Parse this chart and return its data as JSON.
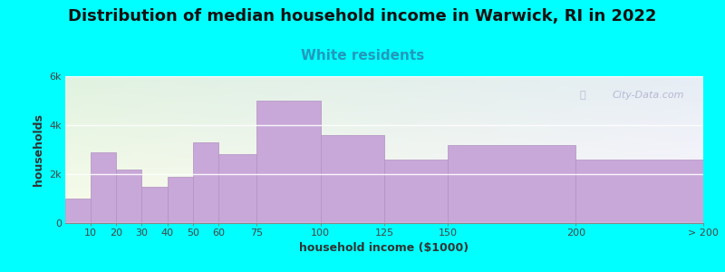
{
  "title": "Distribution of median household income in Warwick, RI in 2022",
  "subtitle": "White residents",
  "xlabel": "household income ($1000)",
  "ylabel": "households",
  "background_color": "#00FFFF",
  "bar_color": "#c8a8d8",
  "bar_edge_color": "#b090c0",
  "bin_edges": [
    0,
    10,
    20,
    30,
    40,
    50,
    60,
    75,
    100,
    125,
    150,
    200,
    250
  ],
  "bin_labels": [
    "10",
    "20",
    "30",
    "40",
    "50",
    "60",
    "75",
    "100",
    "125",
    "150",
    "200",
    "> 200"
  ],
  "values": [
    1000,
    2900,
    2200,
    1500,
    1900,
    3300,
    2800,
    5000,
    3600,
    2600,
    3200,
    2600
  ],
  "ylim": [
    0,
    6000
  ],
  "yticks": [
    0,
    2000,
    4000,
    6000
  ],
  "ytick_labels": [
    "0",
    "2k",
    "4k",
    "6k"
  ],
  "title_fontsize": 13,
  "subtitle_fontsize": 11,
  "subtitle_color": "#2299BB",
  "axis_label_fontsize": 9,
  "tick_fontsize": 8,
  "title_color": "#111111",
  "watermark_text": "City-Data.com",
  "watermark_color": "#aaaacc"
}
